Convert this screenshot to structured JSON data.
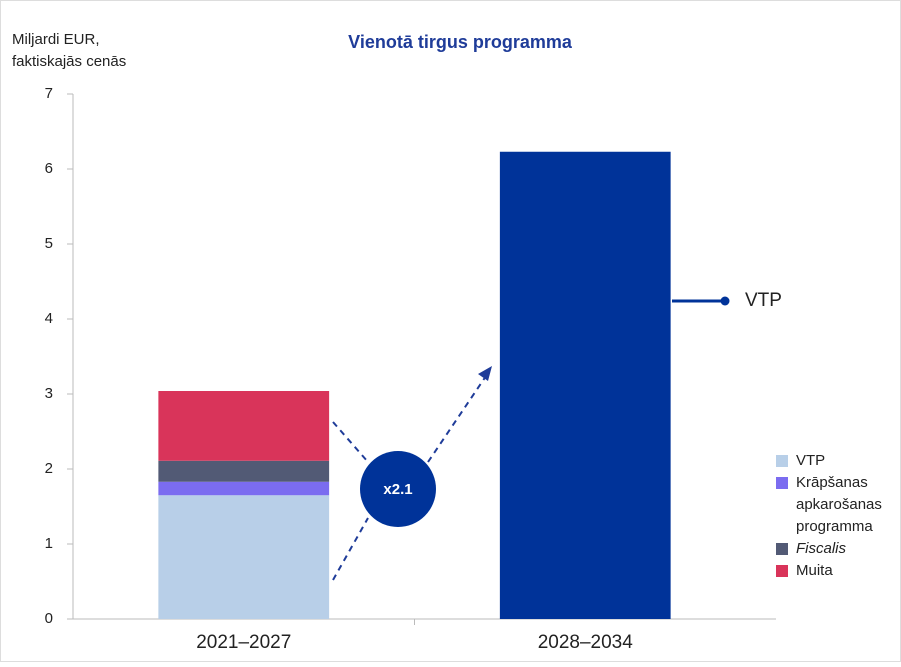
{
  "chart_data": {
    "type": "stacked_bar",
    "title": "Vienotā tirgus programma",
    "y_label": [
      "Miljardi EUR,",
      "faktiskajās cenās"
    ],
    "categories": [
      "2021–2027",
      "2028–2034"
    ],
    "series": [
      {
        "name": "VTP",
        "color": "#b8cfe8",
        "values": [
          1.65,
          null
        ]
      },
      {
        "name": "Krāpšanas apkarošanas programma",
        "color": "#7b6cf0",
        "values": [
          0.18,
          null
        ]
      },
      {
        "name": "Fiscalis",
        "color": "#525a75",
        "values": [
          0.28,
          null
        ],
        "italic": true
      },
      {
        "name": "Muita",
        "color": "#d9345a",
        "values": [
          0.93,
          null
        ]
      },
      {
        "name": "VTP",
        "color": "#003399",
        "values": [
          null,
          6.23
        ],
        "legend": false
      }
    ],
    "ylim": [
      0,
      7
    ],
    "yticks": [
      0,
      1,
      2,
      3,
      4,
      5,
      6,
      7
    ],
    "annotations": [
      "x2.1"
    ]
  }
}
